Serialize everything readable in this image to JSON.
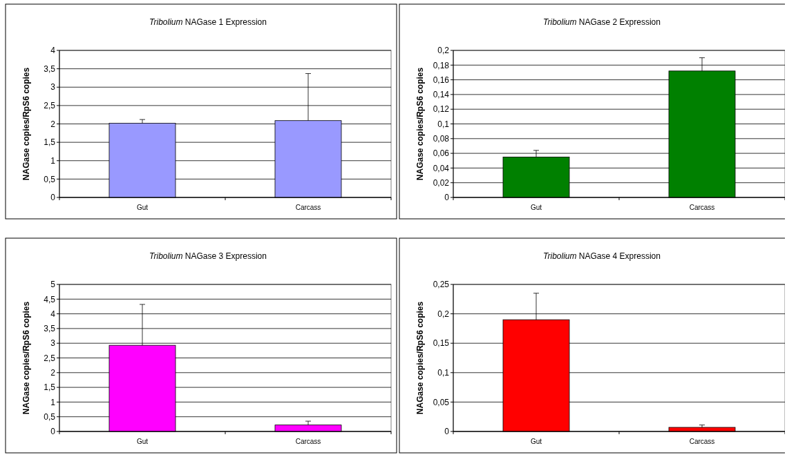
{
  "chart_data": [
    {
      "type": "bar",
      "title": "Tribolium NAGase 1 Expression",
      "ylabel": "NAGase copies/RpS6 copies",
      "categories": [
        "Gut",
        "Carcass"
      ],
      "values": [
        2.02,
        2.09
      ],
      "errors": [
        [
          2.02,
          2.12
        ],
        [
          2.09,
          3.37
        ]
      ],
      "color": "#9999ff",
      "ylim": [
        0,
        4
      ],
      "yticks": [
        0,
        {
          "value": 0.5,
          "label": "0,5"
        },
        1,
        {
          "value": 1.5,
          "label": "1,5"
        },
        2,
        {
          "value": 2.5,
          "label": "2,5"
        },
        3,
        {
          "value": 3.5,
          "label": "3,5"
        },
        4
      ],
      "grid": "y"
    },
    {
      "type": "bar",
      "title": "Tribolium NAGase 2 Expression",
      "ylabel": "NAGase copies/RpS6 copies",
      "categories": [
        "Gut",
        "Carcass"
      ],
      "values": [
        0.055,
        0.172
      ],
      "errors": [
        [
          0.055,
          0.064
        ],
        [
          0.172,
          0.19
        ]
      ],
      "color": "#008000",
      "ylim": [
        0,
        0.2
      ],
      "yticks": [
        0,
        {
          "value": 0.02,
          "label": "0,02"
        },
        {
          "value": 0.04,
          "label": "0,04"
        },
        {
          "value": 0.06,
          "label": "0,06"
        },
        {
          "value": 0.08,
          "label": "0,08"
        },
        {
          "value": 0.1,
          "label": "0,1"
        },
        {
          "value": 0.12,
          "label": "0,12"
        },
        {
          "value": 0.14,
          "label": "0,14"
        },
        {
          "value": 0.16,
          "label": "0,16"
        },
        {
          "value": 0.18,
          "label": "0,18"
        },
        {
          "value": 0.2,
          "label": "0,2"
        }
      ],
      "grid": "y"
    },
    {
      "type": "bar",
      "title": "Tribolium NAGase 3 Expression",
      "ylabel": "NAGase copies/RpS6 copies",
      "categories": [
        "Gut",
        "Carcass"
      ],
      "values": [
        2.93,
        0.22
      ],
      "errors": [
        [
          2.93,
          4.32
        ],
        [
          0.22,
          0.35
        ]
      ],
      "color": "#ff00ff",
      "ylim": [
        0,
        5
      ],
      "yticks": [
        0,
        {
          "value": 0.5,
          "label": "0,5"
        },
        1,
        {
          "value": 1.5,
          "label": "1,5"
        },
        2,
        {
          "value": 2.5,
          "label": "2,5"
        },
        3,
        {
          "value": 3.5,
          "label": "3,5"
        },
        4,
        {
          "value": 4.5,
          "label": "4,5"
        },
        5
      ],
      "grid": "y"
    },
    {
      "type": "bar",
      "title": "Tribolium NAGase 4 Expression",
      "ylabel": "NAGase copies/RpS6 copies",
      "categories": [
        "Gut",
        "Carcass"
      ],
      "values": [
        0.19,
        0.007
      ],
      "errors": [
        [
          0.19,
          0.235
        ],
        [
          0.007,
          0.011
        ]
      ],
      "color": "#ff0000",
      "ylim": [
        0,
        0.25
      ],
      "yticks": [
        0,
        {
          "value": 0.05,
          "label": "0,05"
        },
        {
          "value": 0.1,
          "label": "0,1"
        },
        {
          "value": 0.15,
          "label": "0,15"
        },
        {
          "value": 0.2,
          "label": "0,2"
        },
        {
          "value": 0.25,
          "label": "0,25"
        }
      ],
      "grid": "y"
    }
  ]
}
